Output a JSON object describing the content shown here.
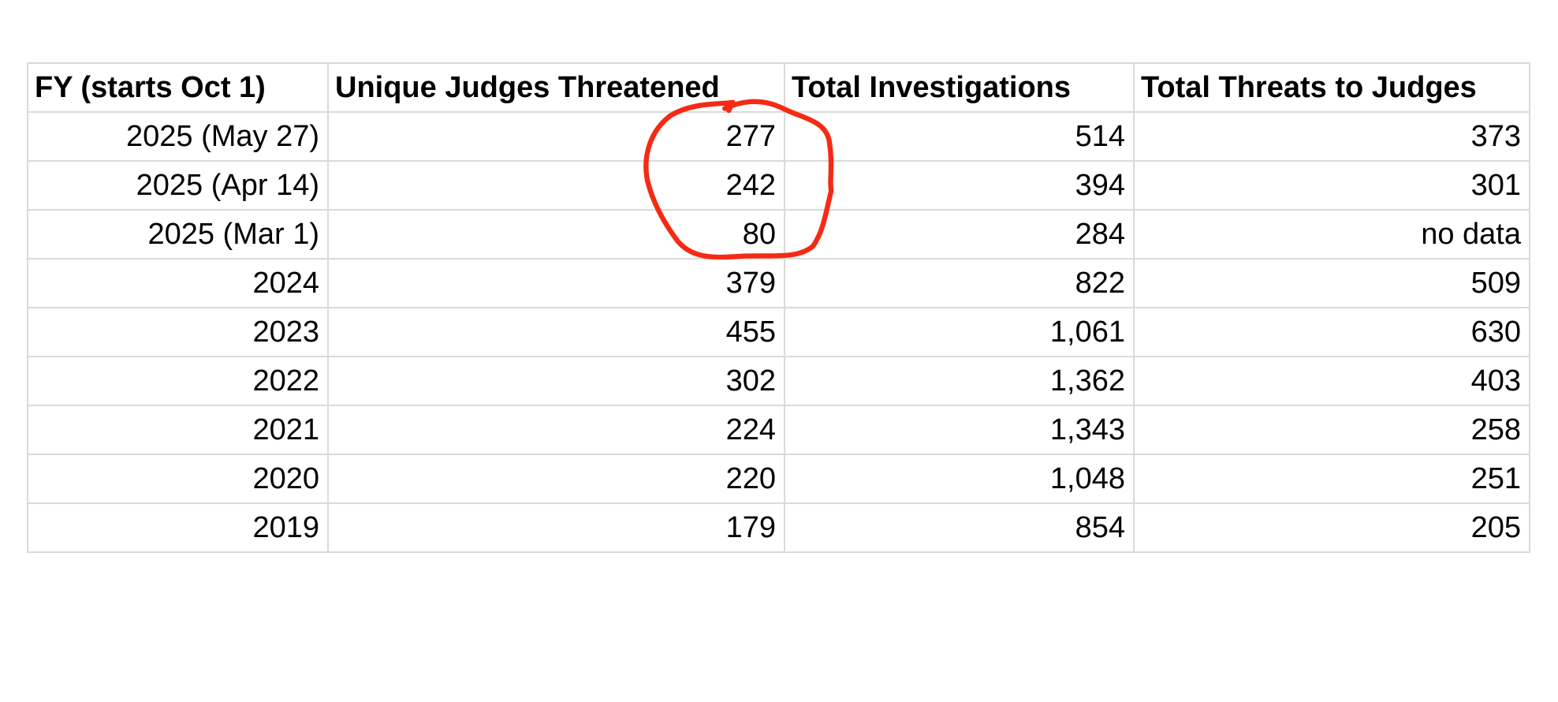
{
  "table": {
    "header": [
      "FY (starts Oct 1)",
      "Unique Judges Threatened",
      "Total Investigations",
      "Total Threats to Judges"
    ],
    "rows": [
      [
        "2025 (May 27)",
        "277",
        "514",
        "373"
      ],
      [
        "2025 (Apr 14)",
        "242",
        "394",
        "301"
      ],
      [
        "2025 (Mar 1)",
        "80",
        "284",
        "no data"
      ],
      [
        "2024",
        "379",
        "822",
        "509"
      ],
      [
        "2023",
        "455",
        "1,061",
        "630"
      ],
      [
        "2022",
        "302",
        "1,362",
        "403"
      ],
      [
        "2021",
        "224",
        "1,343",
        "258"
      ],
      [
        "2020",
        "220",
        "1,048",
        "251"
      ],
      [
        "2019",
        "179",
        "854",
        "205"
      ]
    ]
  }
}
